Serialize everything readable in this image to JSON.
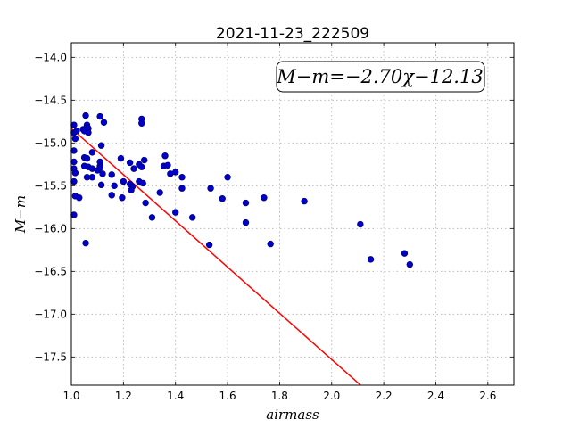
{
  "chart_data": {
    "type": "scatter",
    "title": "2021-11-23_222509",
    "xlabel": "airmass",
    "ylabel": "M−m",
    "xlim": [
      1.0,
      2.7
    ],
    "ylim": [
      -17.83,
      -13.83
    ],
    "xticks": [
      "1.0",
      "1.2",
      "1.4",
      "1.6",
      "1.8",
      "2.0",
      "2.2",
      "2.4",
      "2.6"
    ],
    "xtick_values": [
      1.0,
      1.2,
      1.4,
      1.6,
      1.8,
      2.0,
      2.2,
      2.4,
      2.6
    ],
    "yticks": [
      "−14.0",
      "−14.5",
      "−15.0",
      "−15.5",
      "−16.0",
      "−16.5",
      "−17.0",
      "−17.5"
    ],
    "ytick_values": [
      -14.0,
      -14.5,
      -15.0,
      -15.5,
      -16.0,
      -16.5,
      -17.0,
      -17.5
    ],
    "grid": true,
    "annotation": "M−m=−2.70χ−12.13",
    "annotation_placement": "top-right",
    "fit": {
      "slope": -2.7,
      "intercept": -12.13,
      "x_start": 1.0,
      "color": "#ff0000"
    },
    "point_color": "#0000cc",
    "points": [
      [
        1.01,
        -14.79
      ],
      [
        1.01,
        -14.88
      ],
      [
        1.015,
        -14.95
      ],
      [
        1.02,
        -14.86
      ],
      [
        1.01,
        -15.09
      ],
      [
        1.01,
        -15.22
      ],
      [
        1.01,
        -15.3
      ],
      [
        1.015,
        -15.35
      ],
      [
        1.01,
        -15.45
      ],
      [
        1.015,
        -15.62
      ],
      [
        1.03,
        -15.64
      ],
      [
        1.01,
        -15.84
      ],
      [
        1.045,
        -14.84
      ],
      [
        1.05,
        -14.86
      ],
      [
        1.055,
        -14.68
      ],
      [
        1.06,
        -14.79
      ],
      [
        1.065,
        -14.83
      ],
      [
        1.065,
        -14.88
      ],
      [
        1.05,
        -15.17
      ],
      [
        1.06,
        -15.18
      ],
      [
        1.05,
        -15.27
      ],
      [
        1.065,
        -15.28
      ],
      [
        1.06,
        -15.4
      ],
      [
        1.08,
        -15.11
      ],
      [
        1.08,
        -15.3
      ],
      [
        1.08,
        -15.4
      ],
      [
        1.1,
        -15.32
      ],
      [
        1.055,
        -16.17
      ],
      [
        1.11,
        -14.69
      ],
      [
        1.125,
        -14.76
      ],
      [
        1.115,
        -15.03
      ],
      [
        1.11,
        -15.22
      ],
      [
        1.11,
        -15.27
      ],
      [
        1.11,
        -15.29
      ],
      [
        1.12,
        -15.36
      ],
      [
        1.115,
        -15.49
      ],
      [
        1.155,
        -15.37
      ],
      [
        1.155,
        -15.61
      ],
      [
        1.165,
        -15.5
      ],
      [
        1.19,
        -15.18
      ],
      [
        1.2,
        -15.45
      ],
      [
        1.195,
        -15.64
      ],
      [
        1.225,
        -15.23
      ],
      [
        1.225,
        -15.48
      ],
      [
        1.235,
        -15.51
      ],
      [
        1.23,
        -15.55
      ],
      [
        1.24,
        -15.3
      ],
      [
        1.26,
        -15.25
      ],
      [
        1.26,
        -15.45
      ],
      [
        1.27,
        -15.28
      ],
      [
        1.275,
        -15.47
      ],
      [
        1.28,
        -15.2
      ],
      [
        1.27,
        -14.72
      ],
      [
        1.27,
        -14.77
      ],
      [
        1.285,
        -15.7
      ],
      [
        1.31,
        -15.87
      ],
      [
        1.34,
        -15.58
      ],
      [
        1.355,
        -15.27
      ],
      [
        1.36,
        -15.15
      ],
      [
        1.37,
        -15.26
      ],
      [
        1.38,
        -15.36
      ],
      [
        1.4,
        -15.34
      ],
      [
        1.4,
        -15.81
      ],
      [
        1.425,
        -15.4
      ],
      [
        1.425,
        -15.53
      ],
      [
        1.465,
        -15.87
      ],
      [
        1.535,
        -15.53
      ],
      [
        1.53,
        -16.19
      ],
      [
        1.58,
        -15.65
      ],
      [
        1.6,
        -15.4
      ],
      [
        1.67,
        -15.7
      ],
      [
        1.67,
        -15.93
      ],
      [
        1.74,
        -15.64
      ],
      [
        1.765,
        -16.18
      ],
      [
        1.895,
        -15.68
      ],
      [
        2.11,
        -15.95
      ],
      [
        2.15,
        -16.36
      ],
      [
        2.28,
        -16.29
      ],
      [
        2.3,
        -16.42
      ]
    ]
  }
}
